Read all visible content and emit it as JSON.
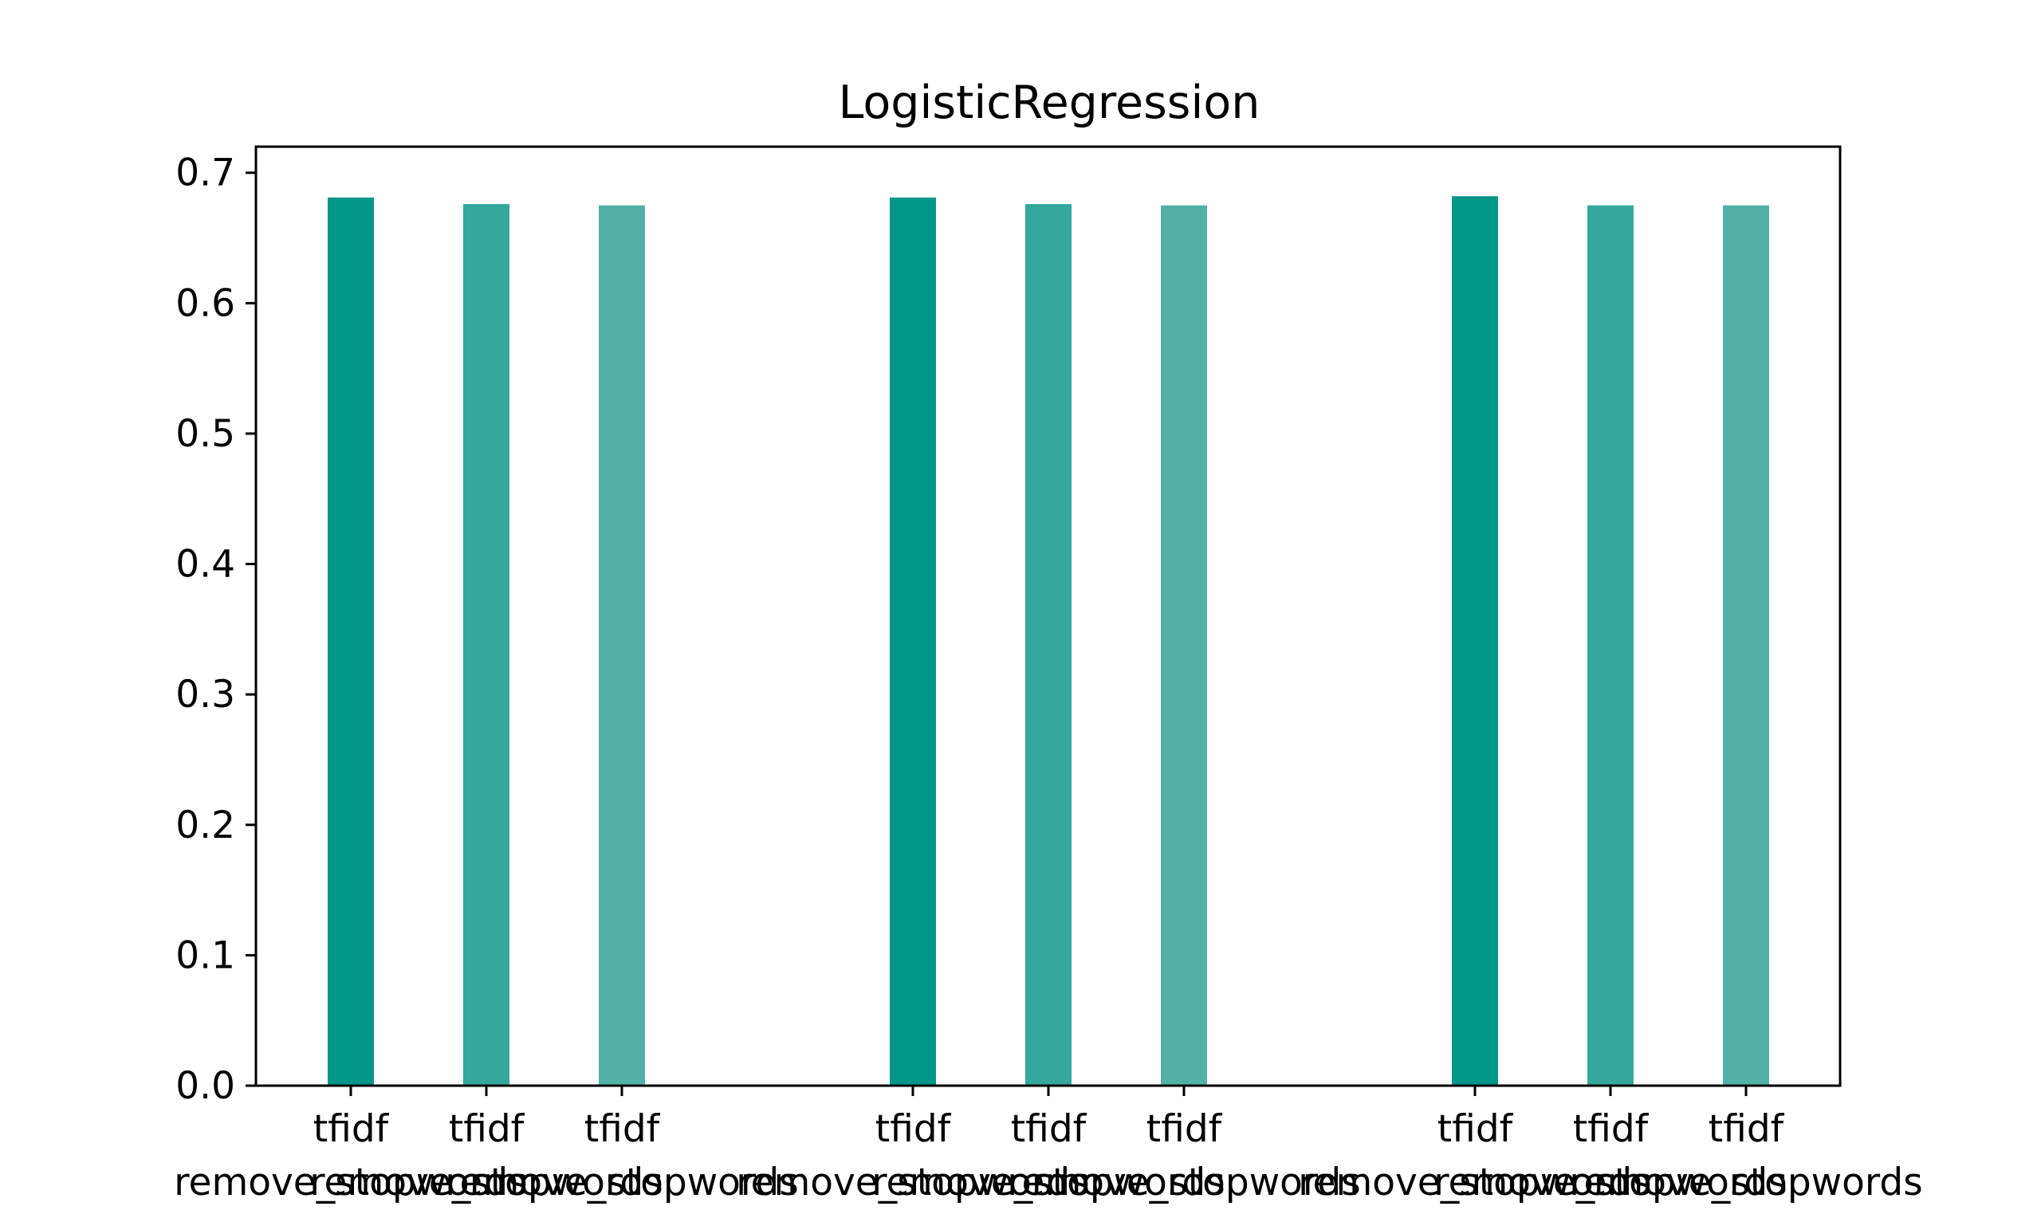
{
  "chart_data": {
    "type": "bar",
    "title": "LogisticRegression",
    "xlabel": "",
    "ylabel": "",
    "ylim": [
      0,
      0.72
    ],
    "yticks": [
      "0.0",
      "0.1",
      "0.2",
      "0.3",
      "0.4",
      "0.5",
      "0.6",
      "0.7"
    ],
    "grid": false,
    "categories": [
      {
        "line1": "tfidf",
        "line2": "remove_stopwords"
      },
      {
        "line1": "tfidf",
        "line2": "remove_stopwords"
      },
      {
        "line1": "tfidf",
        "line2": "remove_stopwords"
      },
      {
        "line1": "tfidf",
        "line2": "remove_stopwords"
      },
      {
        "line1": "tfidf",
        "line2": "remove_stopwords"
      },
      {
        "line1": "tfidf",
        "line2": "remove_stopwords"
      },
      {
        "line1": "tfidf",
        "line2": "remove_stopwords"
      },
      {
        "line1": "tfidf",
        "line2": "remove_stopwords"
      },
      {
        "line1": "tfidf",
        "line2": "remove_stopwords"
      }
    ],
    "values": [
      0.681,
      0.676,
      0.675,
      0.681,
      0.676,
      0.675,
      0.682,
      0.675,
      0.675
    ],
    "colors": [
      "#009688",
      "#35a89e",
      "#52b1a6",
      "#009688",
      "#35a89e",
      "#52b1a6",
      "#009688",
      "#35a89e",
      "#52b1a6"
    ]
  }
}
